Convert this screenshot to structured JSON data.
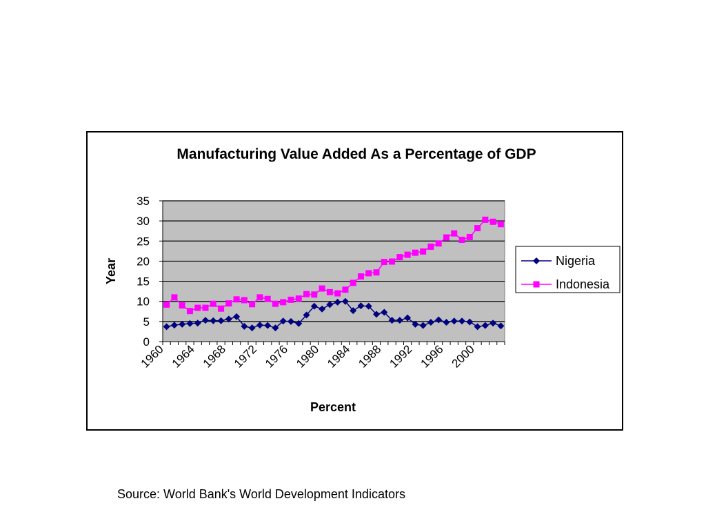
{
  "source_note": "Source: World Bank's World Development Indicators",
  "colors": {
    "nigeria": "#000080",
    "indonesia": "#FF00FF",
    "plot_background": "#C0C0C0",
    "gridline": "#000000"
  },
  "chart_data": {
    "type": "line",
    "title": "Manufacturing Value Added As a Percentage of GDP",
    "xlabel": "Percent",
    "ylabel": "Year",
    "ylim": [
      0,
      35
    ],
    "yticks": [
      0,
      5,
      10,
      15,
      20,
      25,
      30,
      35
    ],
    "xlim": [
      1960,
      2003
    ],
    "xticks": [
      "1960",
      "1964",
      "1968",
      "1972",
      "1976",
      "1980",
      "1984",
      "1988",
      "1992",
      "1996",
      "2000"
    ],
    "grid": true,
    "legend_position": "right",
    "x": [
      1960,
      1961,
      1962,
      1963,
      1964,
      1965,
      1966,
      1967,
      1968,
      1969,
      1970,
      1971,
      1972,
      1973,
      1974,
      1975,
      1976,
      1977,
      1978,
      1979,
      1980,
      1981,
      1982,
      1983,
      1984,
      1985,
      1986,
      1987,
      1988,
      1989,
      1990,
      1991,
      1992,
      1993,
      1994,
      1995,
      1996,
      1997,
      1998,
      1999,
      2000,
      2001,
      2002,
      2003
    ],
    "series": [
      {
        "name": "Nigeria",
        "marker": "diamond",
        "values": [
          3.7,
          4.1,
          4.3,
          4.5,
          4.6,
          5.3,
          5.2,
          5.2,
          5.6,
          6.2,
          3.8,
          3.4,
          4.1,
          4.0,
          3.4,
          5.1,
          5.0,
          4.5,
          6.6,
          8.8,
          8.1,
          9.2,
          9.8,
          10.0,
          7.7,
          8.9,
          8.8,
          6.8,
          7.3,
          5.3,
          5.3,
          5.9,
          4.3,
          4.0,
          4.8,
          5.4,
          4.8,
          5.1,
          5.1,
          4.9,
          3.7,
          4.0,
          4.6,
          3.9
        ]
      },
      {
        "name": "Indonesia",
        "marker": "square",
        "values": [
          9.2,
          11.0,
          9.0,
          7.6,
          8.4,
          8.4,
          9.4,
          8.2,
          9.5,
          10.5,
          10.3,
          9.3,
          11.0,
          10.6,
          9.4,
          9.8,
          10.4,
          10.7,
          11.8,
          11.7,
          13.2,
          12.3,
          12.0,
          12.9,
          14.6,
          16.2,
          17.0,
          17.2,
          19.8,
          19.9,
          21.0,
          21.6,
          22.1,
          22.4,
          23.6,
          24.4,
          25.9,
          26.9,
          25.3,
          26.0,
          28.2,
          30.3,
          29.8,
          29.2
        ]
      }
    ]
  }
}
